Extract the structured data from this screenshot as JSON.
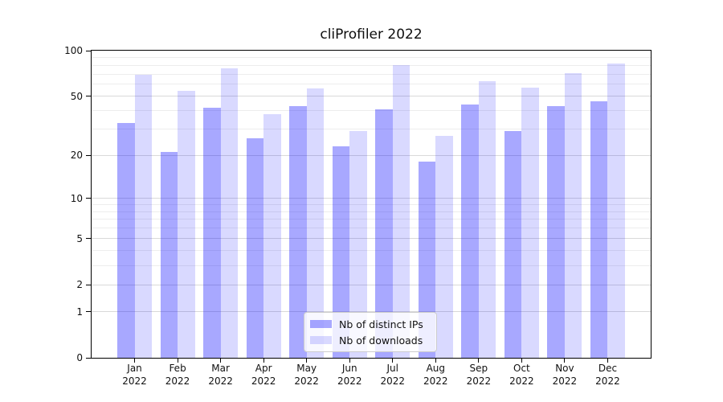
{
  "chart_data": {
    "type": "bar",
    "title": "cliProfiler 2022",
    "categories": [
      "Jan",
      "Feb",
      "Mar",
      "Apr",
      "May",
      "Jun",
      "Jul",
      "Aug",
      "Sep",
      "Oct",
      "Nov",
      "Dec"
    ],
    "x_sublabel": "2022",
    "series": [
      {
        "name": "Nb of distinct IPs",
        "color": "rgba(0,0,255,0.34)",
        "values": [
          33,
          21,
          42,
          26,
          43,
          23,
          41,
          18,
          44,
          29,
          43,
          46
        ]
      },
      {
        "name": "Nb of downloads",
        "color": "rgba(0,0,255,0.15)",
        "values": [
          69,
          54,
          76,
          38,
          56,
          29,
          80,
          27,
          63,
          57,
          71,
          82
        ]
      }
    ],
    "ylim": [
      0,
      100
    ],
    "yscale": "symlog-log1p",
    "yticks": [
      0,
      1,
      2,
      5,
      10,
      20,
      50,
      100
    ],
    "yticks_minor": [
      3,
      4,
      6,
      7,
      8,
      9,
      30,
      40,
      60,
      70,
      80,
      90
    ],
    "grid": "horizontal",
    "legend_position": "lower center"
  },
  "colors": {
    "background": "#ffffff",
    "bar_distinct_ips": "rgba(0,0,255,0.34)",
    "bar_downloads": "rgba(0,0,255,0.15)",
    "grid_major": "#d9d9d9",
    "grid_minor": "#ededed",
    "axis": "#000000",
    "text": "#111111",
    "legend_border": "#cccccc"
  }
}
